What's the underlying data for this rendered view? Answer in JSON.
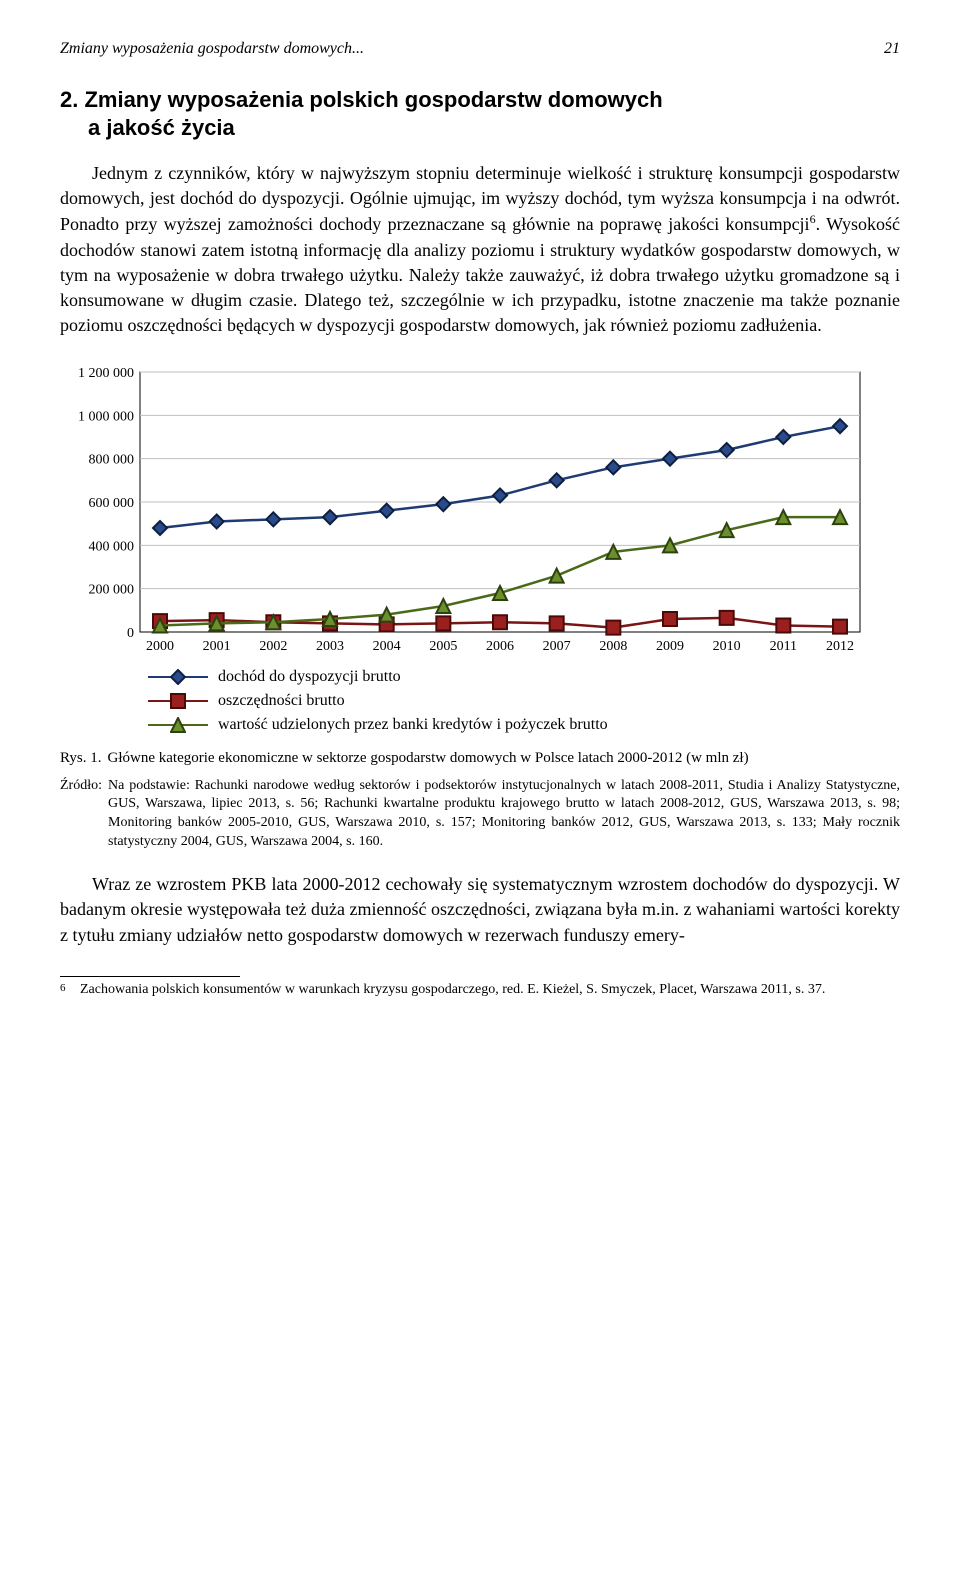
{
  "running_head": {
    "title": "Zmiany wyposażenia gospodarstw domowych...",
    "page": "21"
  },
  "heading": {
    "line1": "2. Zmiany wyposażenia polskich gospodarstw domowych",
    "line2": "a jakość życia"
  },
  "para1": "Jednym z czynników, który w najwyższym stopniu determinuje wielkość i strukturę konsumpcji gospodarstw domowych, jest dochód do dyspozycji. Ogólnie ujmując, im wyższy dochód, tym wyższa konsumpcja i na odwrót. Ponadto przy wyższej zamożności dochody przeznaczane są głównie na poprawę jakości konsumpcji",
  "para1_sup": "6",
  "para1_cont": ". Wysokość dochodów stanowi zatem istotną informację dla analizy poziomu i struktury wydatków gospodarstw domowych, w tym na wyposażenie w dobra trwałego użytku. Należy także zauważyć, iż dobra trwałego użytku gromadzone są i konsumowane w długim czasie. Dlatego też, szczególnie w ich przypadku, istotne znaczenie ma także poznanie poziomu oszczędności będących w dyspozycji gospodarstw domowych, jak również poziomu zadłużenia.",
  "chart": {
    "type": "line",
    "years": [
      "2000",
      "2001",
      "2002",
      "2003",
      "2004",
      "2005",
      "2006",
      "2007",
      "2008",
      "2009",
      "2010",
      "2011",
      "2012"
    ],
    "ylim": [
      0,
      1200000
    ],
    "ytick_step": 200000,
    "yticks": [
      "0",
      "200 000",
      "400 000",
      "600 000",
      "800 000",
      "1 000 000",
      "1 200 000"
    ],
    "plot_bg": "#ffffff",
    "border_color": "#000000",
    "grid_color": "#bfbfbf",
    "series": [
      {
        "key": "dochod",
        "label": "dochód do dyspozycji brutto",
        "color": "#1f3b73",
        "marker_fill": "#2a4a8a",
        "marker_border": "#0d1f40",
        "marker": "diamond",
        "values": [
          480000,
          510000,
          520000,
          530000,
          560000,
          590000,
          630000,
          700000,
          760000,
          800000,
          840000,
          900000,
          950000
        ]
      },
      {
        "key": "oszcz",
        "label": "oszczędności brutto",
        "color": "#7a1515",
        "marker_fill": "#9a2020",
        "marker_border": "#4a0a0a",
        "marker": "square",
        "values": [
          50000,
          55000,
          45000,
          40000,
          35000,
          40000,
          45000,
          40000,
          20000,
          60000,
          65000,
          30000,
          25000
        ]
      },
      {
        "key": "kredyty",
        "label": "wartość udzielonych przez banki kredytów i pożyczek brutto",
        "color": "#4a6a1a",
        "marker_fill": "#6b8f2a",
        "marker_border": "#2d400f",
        "marker": "triangle",
        "values": [
          30000,
          40000,
          45000,
          60000,
          80000,
          120000,
          180000,
          260000,
          370000,
          400000,
          470000,
          530000,
          530000
        ]
      }
    ]
  },
  "caption": {
    "label": "Rys. 1.",
    "text": "Główne kategorie ekonomiczne w sektorze gospodarstw domowych w Polsce latach 2000-2012 (w mln zł)"
  },
  "source": {
    "label": "Źródło:",
    "text": "Na podstawie: Rachunki narodowe według sektorów i podsektorów instytucjonalnych w latach 2008-2011, Studia i Analizy Statystyczne, GUS, Warszawa, lipiec 2013, s. 56; Rachunki kwartalne produktu krajowego brutto w latach 2008-2012, GUS, Warszawa 2013, s. 98; Monitoring banków 2005-2010, GUS, Warszawa 2010, s. 157; Monitoring banków 2012, GUS, Warszawa 2013, s. 133; Mały rocznik statystyczny 2004, GUS, Warszawa 2004, s. 160."
  },
  "para2": "Wraz ze wzrostem PKB lata 2000-2012 cechowały się systematycznym wzrostem dochodów do dyspozycji. W badanym okresie występowała też duża zmienność oszczędności, związana była m.in. z wahaniami wartości korekty z tytułu zmiany udziałów netto gospodarstw domowych w rezerwach funduszy emery-",
  "footnote": {
    "num": "6",
    "text": "Zachowania polskich konsumentów w warunkach kryzysu gospodarczego, red. E. Kieżel, S. Smyczek, Placet, Warszawa 2011, s. 37."
  }
}
